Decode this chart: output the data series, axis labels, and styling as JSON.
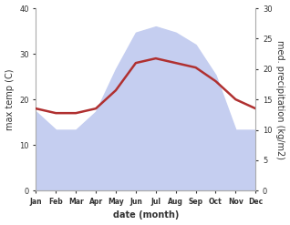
{
  "months": [
    "Jan",
    "Feb",
    "Mar",
    "Apr",
    "May",
    "Jun",
    "Jul",
    "Aug",
    "Sep",
    "Oct",
    "Nov",
    "Dec"
  ],
  "max_temp": [
    18,
    17,
    17,
    18,
    22,
    28,
    29,
    28,
    27,
    24,
    20,
    18
  ],
  "precipitation": [
    13,
    10,
    10,
    13,
    20,
    26,
    27,
    26,
    24,
    19,
    10,
    10
  ],
  "temp_fill_color": "#c5cef0",
  "precip_color": "#b03030",
  "temp_ylim": [
    0,
    40
  ],
  "precip_ylim": [
    0,
    30
  ],
  "xlabel": "date (month)",
  "ylabel_left": "max temp (C)",
  "ylabel_right": "med. precipitation (kg/m2)",
  "background_color": "#ffffff",
  "temp_yticks": [
    0,
    10,
    20,
    30,
    40
  ],
  "precip_yticks": [
    0,
    5,
    10,
    15,
    20,
    25,
    30
  ]
}
